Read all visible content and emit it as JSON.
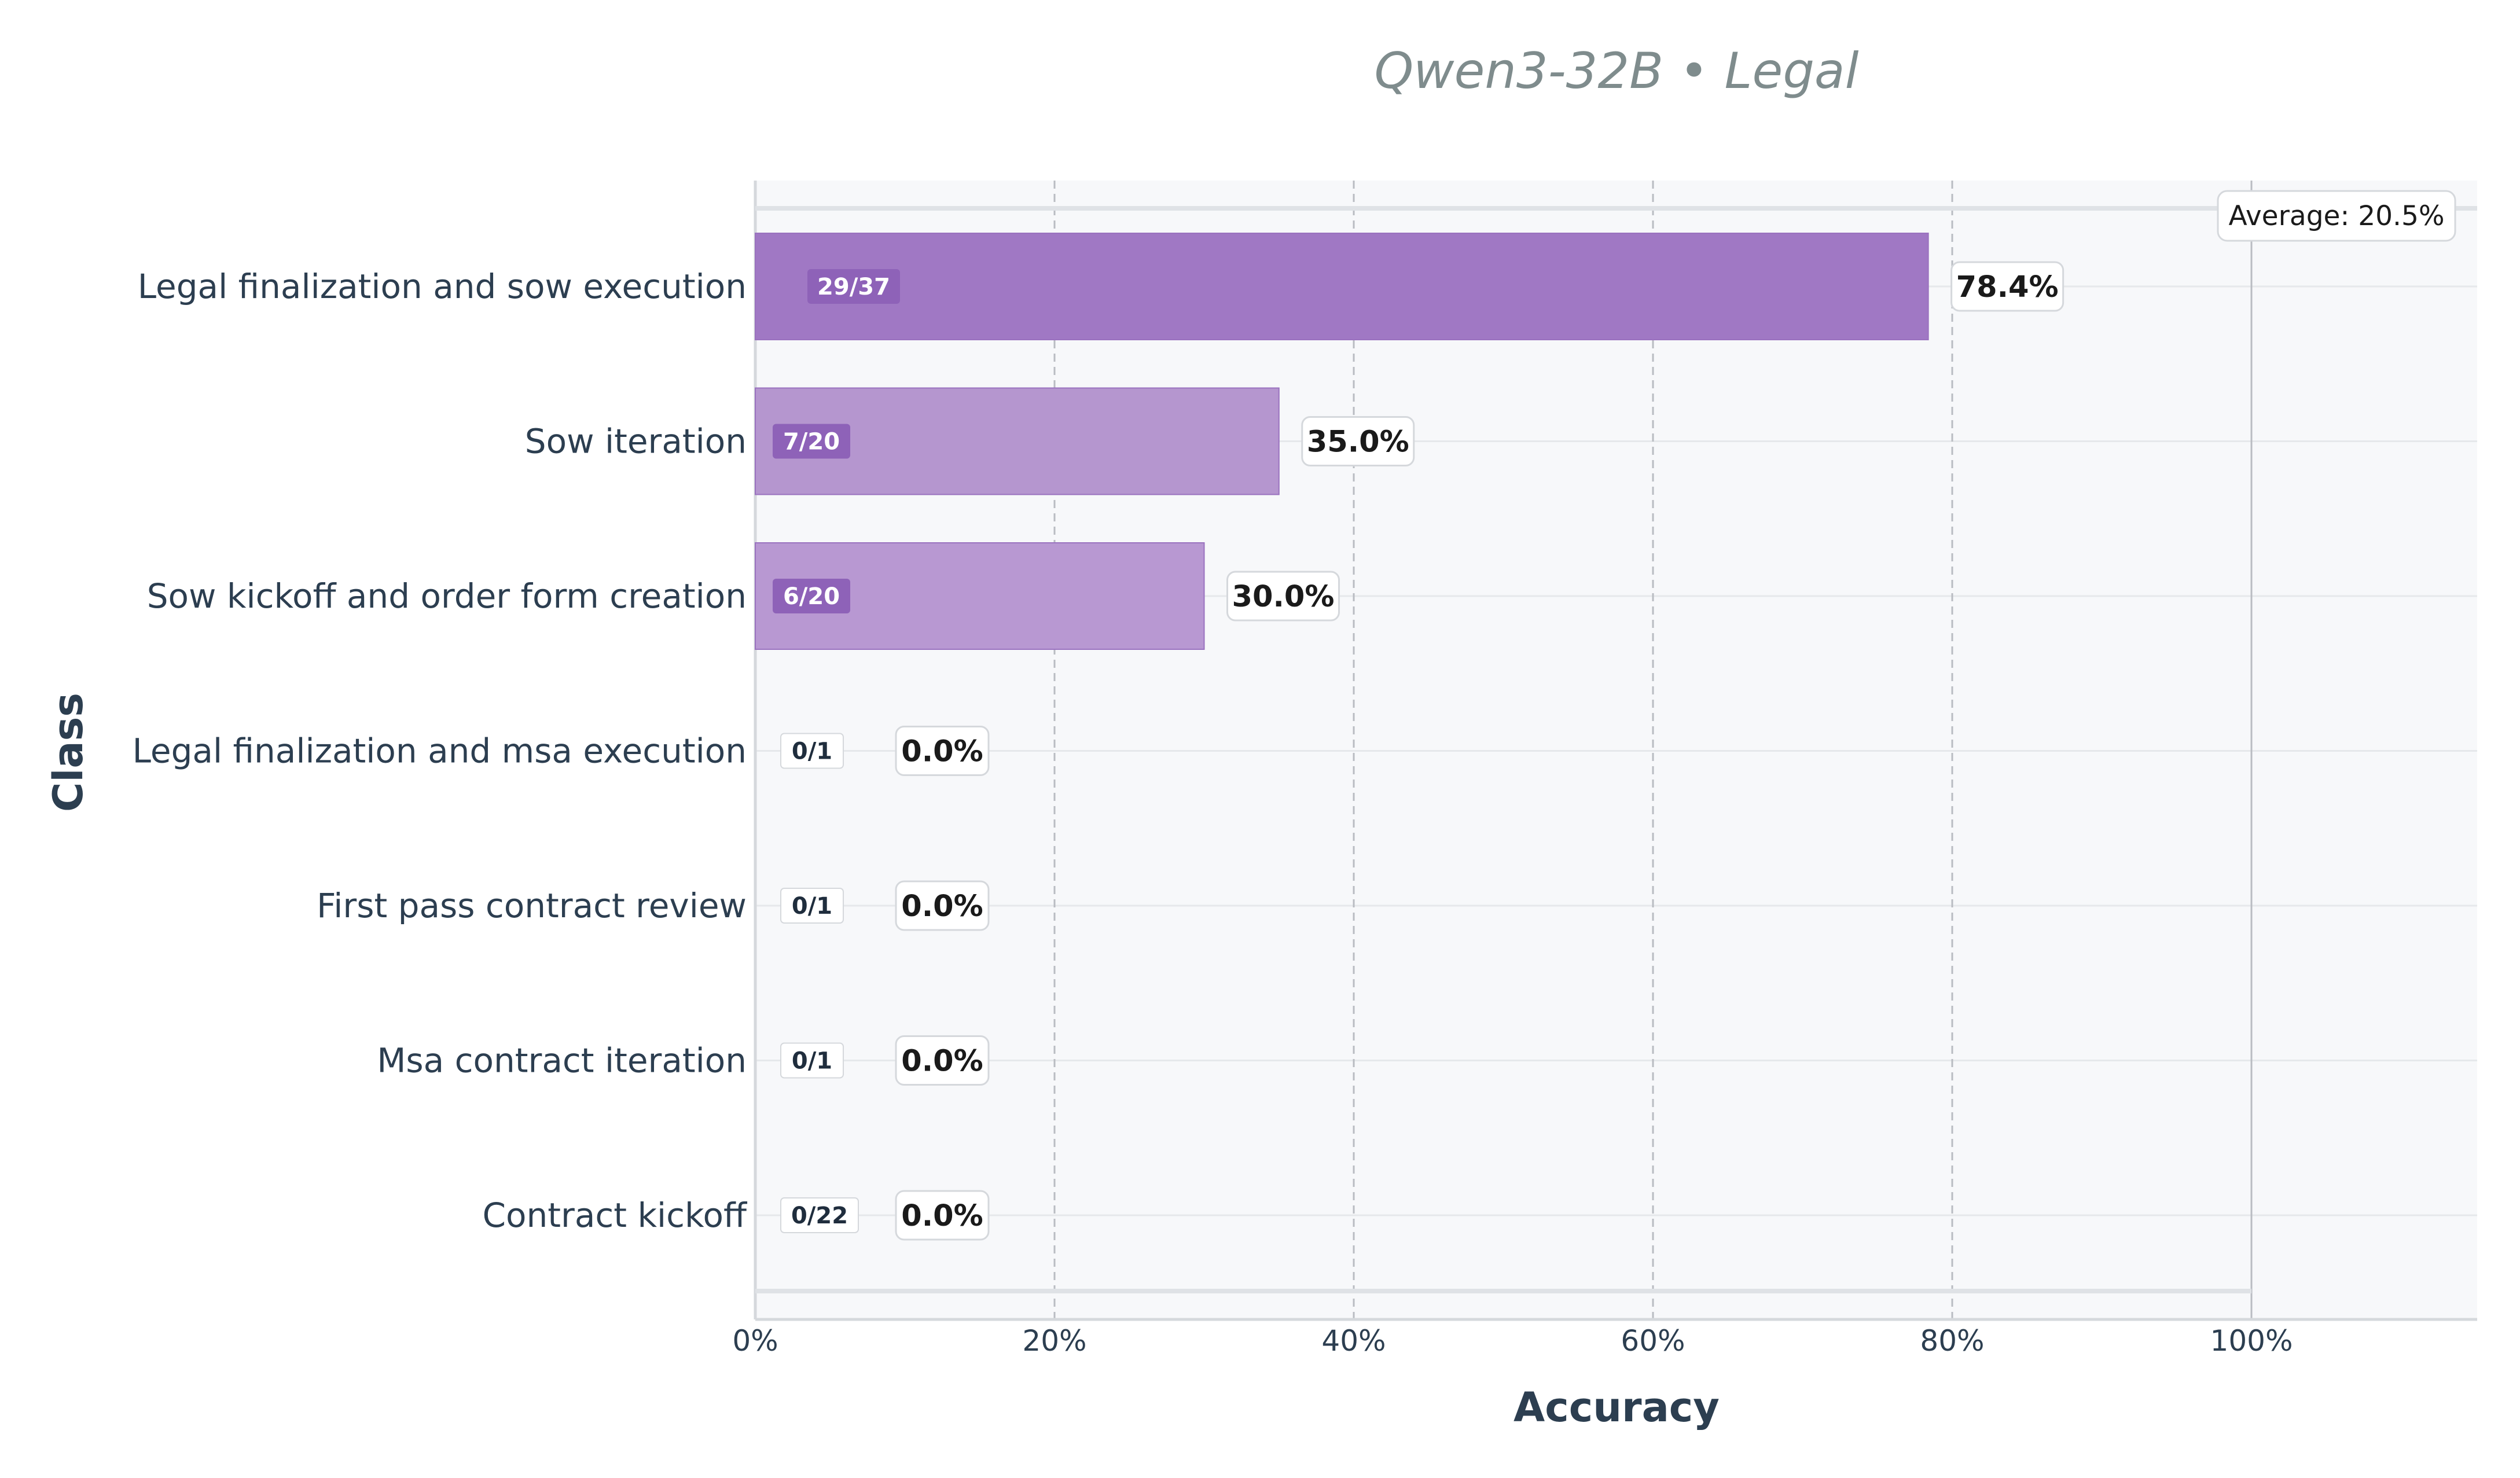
{
  "chart_data": {
    "type": "bar",
    "orientation": "horizontal",
    "title": "Qwen3-32B • Legal",
    "xlabel": "Accuracy",
    "ylabel": "Class",
    "xlim": [
      0,
      115
    ],
    "xticks": [
      0,
      20,
      40,
      60,
      80,
      100
    ],
    "xtick_labels": [
      "0%",
      "20%",
      "40%",
      "60%",
      "80%",
      "100%"
    ],
    "grid": true,
    "categories": [
      "Legal finalization and sow execution",
      "Sow iteration",
      "Sow kickoff and order form creation",
      "Legal finalization and msa execution",
      "First pass contract review",
      "Msa contract iteration",
      "Contract kickoff"
    ],
    "values": [
      78.4,
      35.0,
      30.0,
      0.0,
      0.0,
      0.0,
      0.0
    ],
    "value_labels": [
      "78.4%",
      "35.0%",
      "30.0%",
      "0.0%",
      "0.0%",
      "0.0%",
      "0.0%"
    ],
    "count_labels": [
      "29/37",
      "7/20",
      "6/20",
      "0/1",
      "0/1",
      "0/1",
      "0/22"
    ],
    "average": 20.5,
    "average_label": "Average: 20.5%",
    "colors": {
      "bar_high": "#a078c4",
      "bar_mid": "#b596cf",
      "bar_low": "#b898d2",
      "badge_dark": "#8e62b8",
      "plot_bg": "#f7f8fa",
      "grid": "#b9bcc2"
    }
  }
}
